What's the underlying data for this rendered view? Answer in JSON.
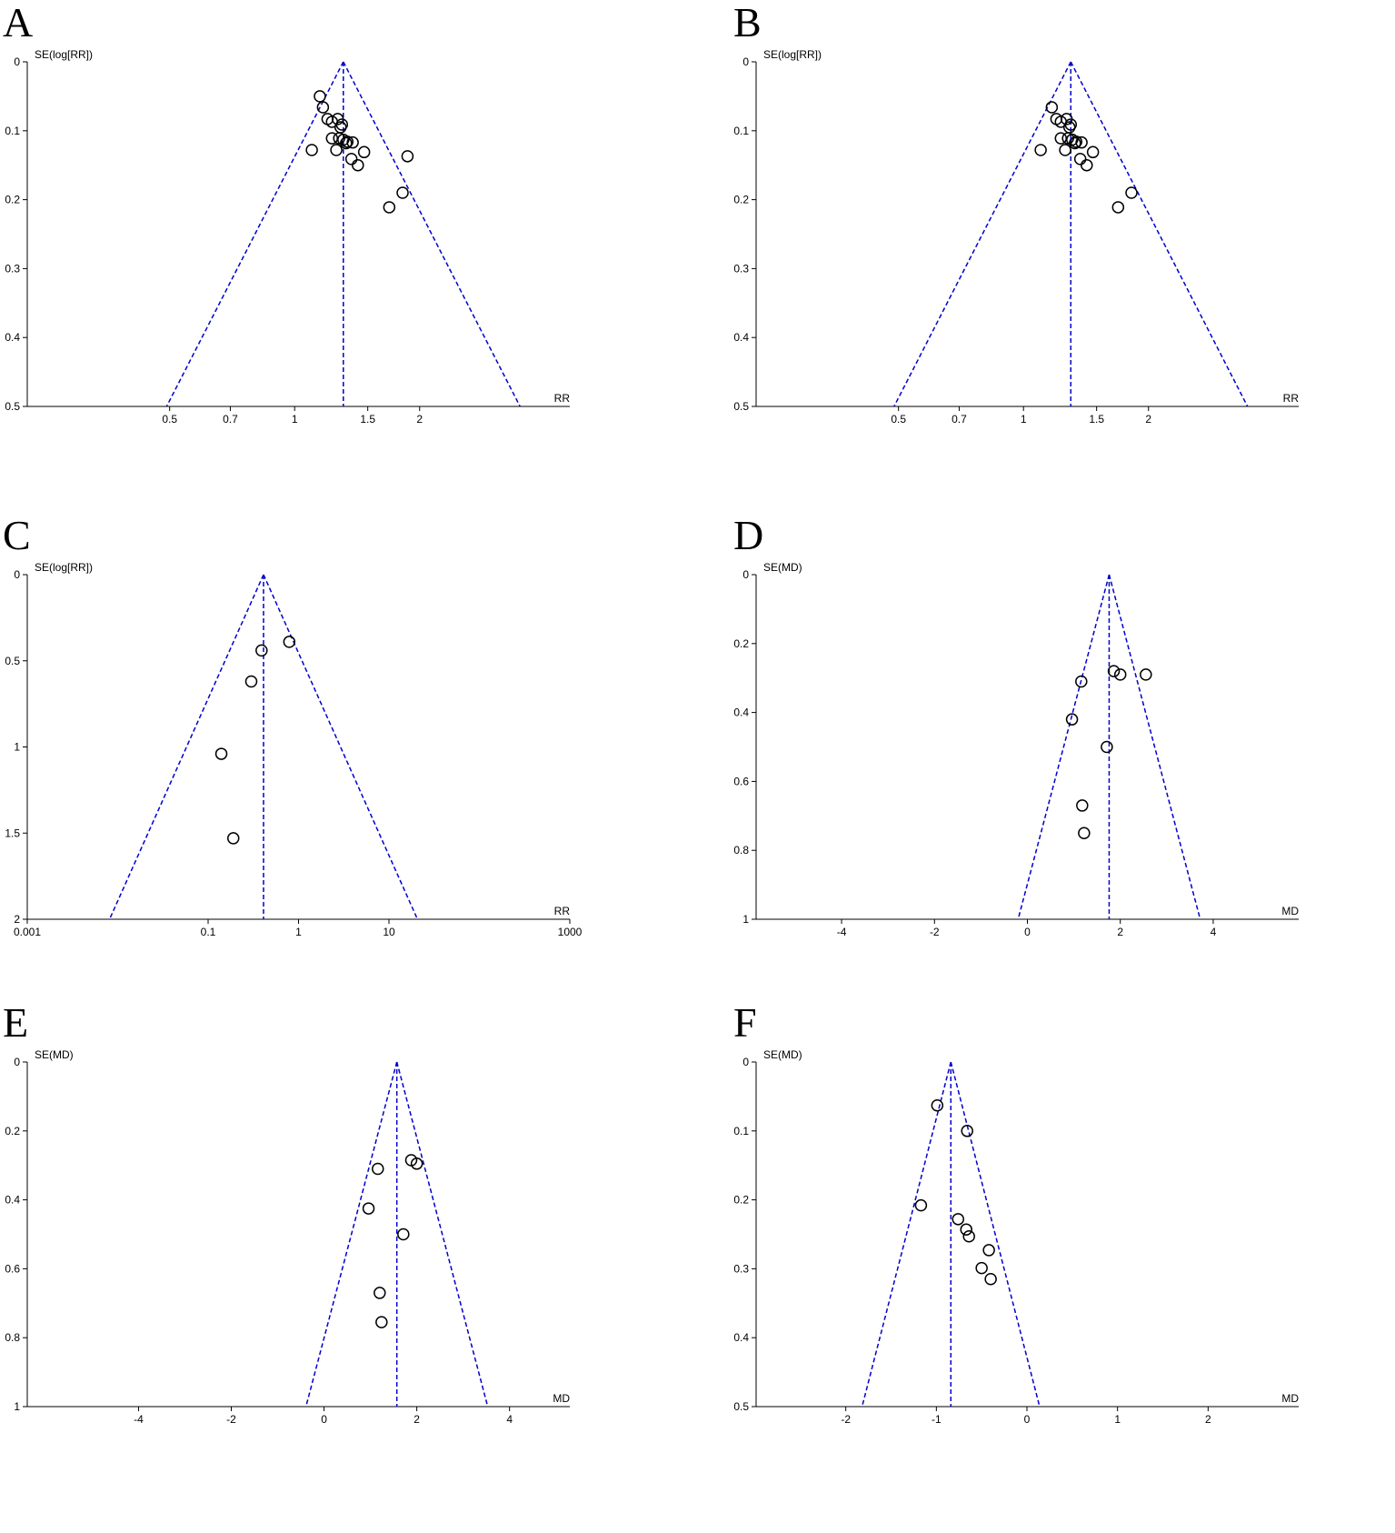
{
  "chart_data": [
    {
      "type": "funnel",
      "panel": "A",
      "y_label": "SE(log[RR])",
      "x_label": "RR",
      "xscale": "log",
      "xlim": [
        0.227,
        4.6
      ],
      "xticks": [
        0.5,
        0.7,
        1,
        1.5,
        2
      ],
      "ylim": [
        0,
        0.5
      ],
      "yticks": [
        0,
        0.1,
        0.2,
        0.3,
        0.4,
        0.5
      ],
      "pooled": 1.31,
      "color": "#0000cc",
      "x": [
        1.15,
        1.17,
        1.2,
        1.23,
        1.27,
        1.3,
        1.29,
        1.1,
        1.23,
        1.26,
        1.28,
        1.31,
        1.34,
        1.33,
        1.38,
        1.47,
        1.37,
        1.42,
        1.87,
        1.82,
        1.69
      ],
      "y": [
        0.05,
        0.066,
        0.083,
        0.087,
        0.083,
        0.091,
        0.095,
        0.128,
        0.111,
        0.128,
        0.111,
        0.113,
        0.116,
        0.118,
        0.117,
        0.131,
        0.141,
        0.15,
        0.137,
        0.19,
        0.211
      ]
    },
    {
      "type": "funnel",
      "panel": "B",
      "y_label": "SE(log[RR])",
      "x_label": "RR",
      "xscale": "log",
      "xlim": [
        0.227,
        4.6
      ],
      "xticks": [
        0.5,
        0.7,
        1,
        1.5,
        2
      ],
      "ylim": [
        0,
        0.5
      ],
      "yticks": [
        0,
        0.1,
        0.2,
        0.3,
        0.4,
        0.5
      ],
      "pooled": 1.3,
      "color": "#0000cc",
      "x": [
        1.17,
        1.2,
        1.23,
        1.27,
        1.3,
        1.29,
        1.1,
        1.23,
        1.26,
        1.28,
        1.31,
        1.34,
        1.33,
        1.38,
        1.47,
        1.37,
        1.42,
        1.82,
        1.69
      ],
      "y": [
        0.066,
        0.083,
        0.087,
        0.083,
        0.091,
        0.095,
        0.128,
        0.111,
        0.128,
        0.111,
        0.113,
        0.116,
        0.118,
        0.117,
        0.131,
        0.141,
        0.15,
        0.19,
        0.211
      ]
    },
    {
      "type": "funnel",
      "panel": "C",
      "y_label": "SE(log[RR])",
      "x_label": "RR",
      "xscale": "log",
      "xlim": [
        0.001,
        1000
      ],
      "xticks": [
        0.001,
        0.1,
        1,
        10,
        1000
      ],
      "ylim": [
        0,
        2
      ],
      "yticks": [
        0,
        0.5,
        1,
        1.5,
        2
      ],
      "pooled": 0.41,
      "color": "#0000cc",
      "x": [
        0.79,
        0.39,
        0.3,
        0.14,
        0.19
      ],
      "y": [
        0.39,
        0.44,
        0.62,
        1.04,
        1.53
      ]
    },
    {
      "type": "funnel",
      "panel": "D",
      "y_label": "SE(MD)",
      "x_label": "MD",
      "xscale": "linear",
      "xlim": [
        -5.84,
        5.84
      ],
      "xticks": [
        -4,
        -2,
        0,
        2,
        4
      ],
      "ylim": [
        0,
        1
      ],
      "yticks": [
        0,
        0.2,
        0.4,
        0.6,
        0.8,
        1
      ],
      "pooled": 1.76,
      "color": "#0000cc",
      "x": [
        2.55,
        1.86,
        2.0,
        1.16,
        0.96,
        1.71,
        1.18,
        1.22
      ],
      "y": [
        0.29,
        0.28,
        0.29,
        0.31,
        0.42,
        0.5,
        0.67,
        0.75
      ]
    },
    {
      "type": "funnel",
      "panel": "E",
      "y_label": "SE(MD)",
      "x_label": "MD",
      "xscale": "linear",
      "xlim": [
        -6.4,
        5.3
      ],
      "xticks": [
        -4,
        -2,
        0,
        2,
        4
      ],
      "ylim": [
        0,
        1
      ],
      "yticks": [
        0,
        0.2,
        0.4,
        0.6,
        0.8,
        1
      ],
      "pooled": 1.57,
      "color": "#0000cc",
      "x": [
        1.88,
        2.0,
        1.16,
        0.96,
        1.71,
        1.2,
        1.24
      ],
      "y": [
        0.285,
        0.295,
        0.31,
        0.425,
        0.5,
        0.67,
        0.755
      ]
    },
    {
      "type": "funnel",
      "panel": "F",
      "y_label": "SE(MD)",
      "x_label": "MD",
      "xscale": "linear",
      "xlim": [
        -2.99,
        3.0
      ],
      "xticks": [
        -2,
        -1,
        0,
        1,
        2
      ],
      "ylim": [
        0,
        0.5
      ],
      "yticks": [
        0,
        0.1,
        0.2,
        0.3,
        0.4,
        0.5
      ],
      "pooled": -0.84,
      "color": "#0000cc",
      "x": [
        -0.99,
        -0.66,
        -1.17,
        -0.76,
        -0.67,
        -0.64,
        -0.42,
        -0.5,
        -0.4
      ],
      "y": [
        0.063,
        0.1,
        0.208,
        0.228,
        0.243,
        0.253,
        0.273,
        0.299,
        0.315
      ]
    }
  ]
}
